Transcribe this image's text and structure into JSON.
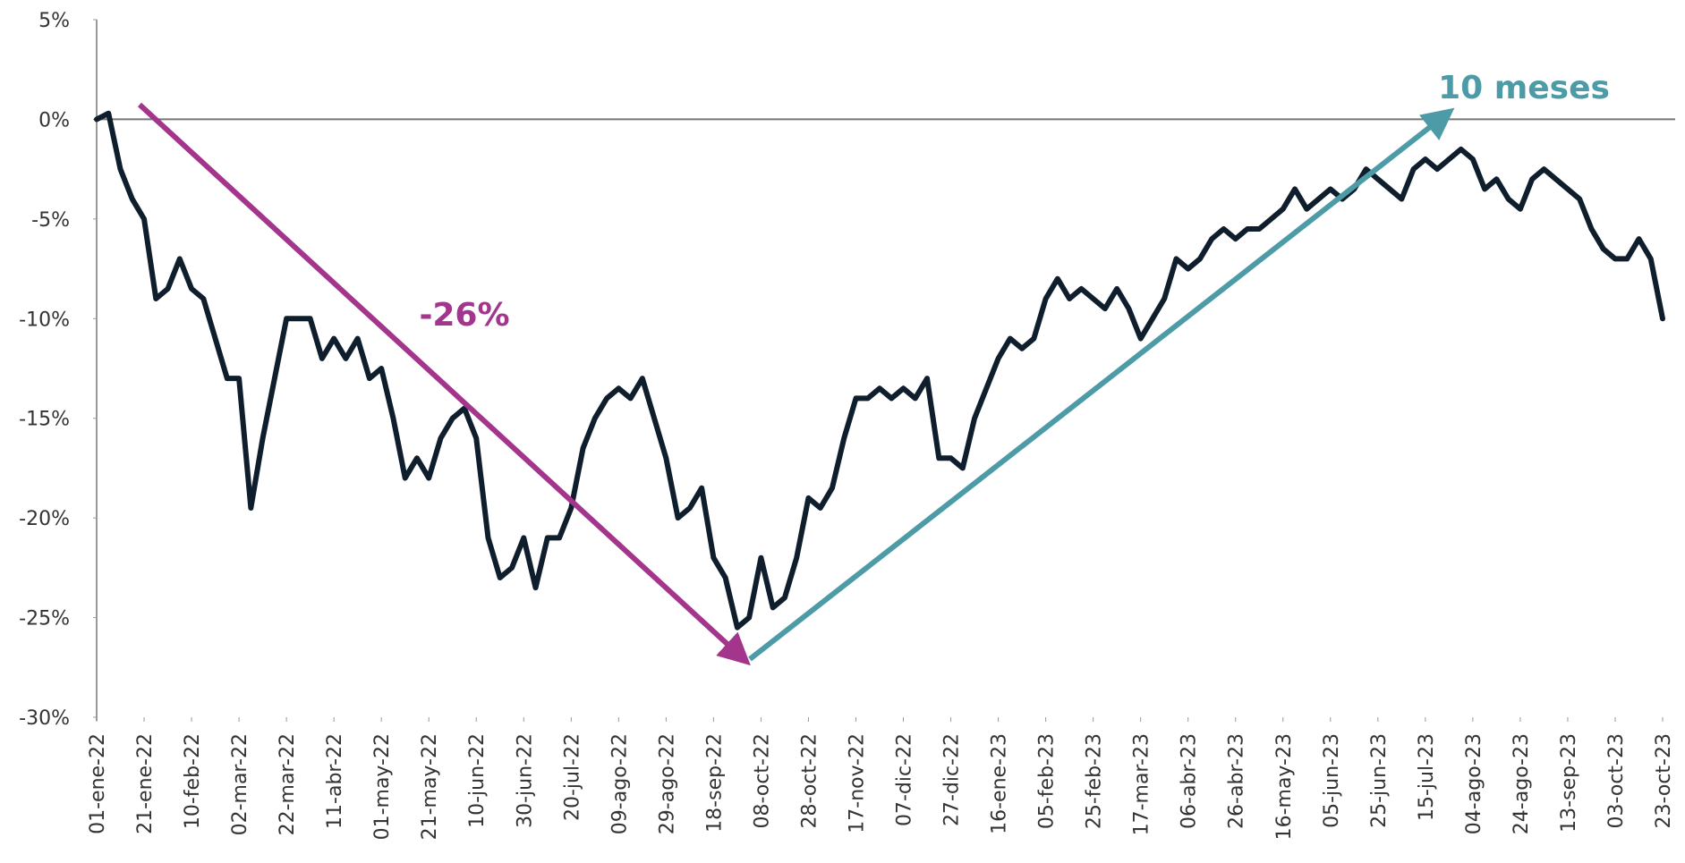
{
  "chart_data": {
    "type": "line",
    "color": "#0f1e2d",
    "xlim": [
      "2022-01-01",
      "2023-10-23"
    ],
    "ylim": [
      -30,
      5
    ],
    "yticks": [
      {
        "value": 5,
        "label": "5%"
      },
      {
        "value": 0,
        "label": "0%"
      },
      {
        "value": -5,
        "label": "-5%"
      },
      {
        "value": -10,
        "label": "-10%"
      },
      {
        "value": -15,
        "label": "-15%"
      },
      {
        "value": -20,
        "label": "-20%"
      },
      {
        "value": -25,
        "label": "-25%"
      },
      {
        "value": -30,
        "label": "-30%"
      }
    ],
    "xticks": [
      {
        "value": "2022-01-01",
        "label": "01-ene-22"
      },
      {
        "value": "2022-01-21",
        "label": "21-ene-22"
      },
      {
        "value": "2022-02-10",
        "label": "10-feb-22"
      },
      {
        "value": "2022-03-02",
        "label": "02-mar-22"
      },
      {
        "value": "2022-03-22",
        "label": "22-mar-22"
      },
      {
        "value": "2022-04-11",
        "label": "11-abr-22"
      },
      {
        "value": "2022-05-01",
        "label": "01-may-22"
      },
      {
        "value": "2022-05-21",
        "label": "21-may-22"
      },
      {
        "value": "2022-06-10",
        "label": "10-jun-22"
      },
      {
        "value": "2022-06-30",
        "label": "30-jun-22"
      },
      {
        "value": "2022-07-20",
        "label": "20-jul-22"
      },
      {
        "value": "2022-08-09",
        "label": "09-ago-22"
      },
      {
        "value": "2022-08-29",
        "label": "29-ago-22"
      },
      {
        "value": "2022-09-18",
        "label": "18-sep-22"
      },
      {
        "value": "2022-10-08",
        "label": "08-oct-22"
      },
      {
        "value": "2022-10-28",
        "label": "28-oct-22"
      },
      {
        "value": "2022-11-17",
        "label": "17-nov-22"
      },
      {
        "value": "2022-12-07",
        "label": "07-dic-22"
      },
      {
        "value": "2022-12-27",
        "label": "27-dic-22"
      },
      {
        "value": "2023-01-16",
        "label": "16-ene-23"
      },
      {
        "value": "2023-02-05",
        "label": "05-feb-23"
      },
      {
        "value": "2023-02-25",
        "label": "25-feb-23"
      },
      {
        "value": "2023-03-17",
        "label": "17-mar-23"
      },
      {
        "value": "2023-04-06",
        "label": "06-abr-23"
      },
      {
        "value": "2023-04-26",
        "label": "26-abr-23"
      },
      {
        "value": "2023-05-16",
        "label": "16-may-23"
      },
      {
        "value": "2023-06-05",
        "label": "05-jun-23"
      },
      {
        "value": "2023-06-25",
        "label": "25-jun-23"
      },
      {
        "value": "2023-07-15",
        "label": "15-jul-23"
      },
      {
        "value": "2023-08-04",
        "label": "04-ago-23"
      },
      {
        "value": "2023-08-24",
        "label": "24-ago-23"
      },
      {
        "value": "2023-09-13",
        "label": "13-sep-23"
      },
      {
        "value": "2023-10-03",
        "label": "03-oct-23"
      },
      {
        "value": "2023-10-23",
        "label": "23-oct-23"
      }
    ],
    "x": [
      "2022-01-01",
      "2022-01-06",
      "2022-01-11",
      "2022-01-16",
      "2022-01-21",
      "2022-01-26",
      "2022-01-31",
      "2022-02-05",
      "2022-02-10",
      "2022-02-15",
      "2022-02-20",
      "2022-02-25",
      "2022-03-02",
      "2022-03-07",
      "2022-03-12",
      "2022-03-17",
      "2022-03-22",
      "2022-03-27",
      "2022-04-01",
      "2022-04-06",
      "2022-04-11",
      "2022-04-16",
      "2022-04-21",
      "2022-04-26",
      "2022-05-01",
      "2022-05-06",
      "2022-05-11",
      "2022-05-16",
      "2022-05-21",
      "2022-05-26",
      "2022-05-31",
      "2022-06-05",
      "2022-06-10",
      "2022-06-15",
      "2022-06-20",
      "2022-06-25",
      "2022-06-30",
      "2022-07-05",
      "2022-07-10",
      "2022-07-15",
      "2022-07-20",
      "2022-07-25",
      "2022-07-30",
      "2022-08-04",
      "2022-08-09",
      "2022-08-14",
      "2022-08-19",
      "2022-08-24",
      "2022-08-29",
      "2022-09-03",
      "2022-09-08",
      "2022-09-13",
      "2022-09-18",
      "2022-09-23",
      "2022-09-28",
      "2022-10-03",
      "2022-10-08",
      "2022-10-13",
      "2022-10-18",
      "2022-10-23",
      "2022-10-28",
      "2022-11-02",
      "2022-11-07",
      "2022-11-12",
      "2022-11-17",
      "2022-11-22",
      "2022-11-27",
      "2022-12-02",
      "2022-12-07",
      "2022-12-12",
      "2022-12-17",
      "2022-12-22",
      "2022-12-27",
      "2023-01-01",
      "2023-01-06",
      "2023-01-11",
      "2023-01-16",
      "2023-01-21",
      "2023-01-26",
      "2023-01-31",
      "2023-02-05",
      "2023-02-10",
      "2023-02-15",
      "2023-02-20",
      "2023-02-25",
      "2023-03-02",
      "2023-03-07",
      "2023-03-12",
      "2023-03-17",
      "2023-03-22",
      "2023-03-27",
      "2023-04-01",
      "2023-04-06",
      "2023-04-11",
      "2023-04-16",
      "2023-04-21",
      "2023-04-26",
      "2023-05-01",
      "2023-05-06",
      "2023-05-11",
      "2023-05-16",
      "2023-05-21",
      "2023-05-26",
      "2023-05-31",
      "2023-06-05",
      "2023-06-10",
      "2023-06-15",
      "2023-06-20",
      "2023-06-25",
      "2023-06-30",
      "2023-07-05",
      "2023-07-10",
      "2023-07-15",
      "2023-07-20",
      "2023-07-25",
      "2023-07-30",
      "2023-08-04",
      "2023-08-09",
      "2023-08-14",
      "2023-08-19",
      "2023-08-24",
      "2023-08-29",
      "2023-09-03",
      "2023-09-08",
      "2023-09-13",
      "2023-09-18",
      "2023-09-23",
      "2023-09-28",
      "2023-10-03",
      "2023-10-08",
      "2023-10-13",
      "2023-10-18",
      "2023-10-23"
    ],
    "values": [
      0,
      0.3,
      -2.5,
      -4,
      -5,
      -9,
      -8.5,
      -7,
      -8.5,
      -9,
      -11,
      -13,
      -13,
      -19.5,
      -16,
      -13,
      -10,
      -10,
      -10,
      -12,
      -11,
      -12,
      -11,
      -13,
      -12.5,
      -15,
      -18,
      -17,
      -18,
      -16,
      -15,
      -14.5,
      -16,
      -21,
      -23,
      -22.5,
      -21,
      -23.5,
      -21,
      -21,
      -19.5,
      -16.5,
      -15,
      -14,
      -13.5,
      -14,
      -13,
      -15,
      -17,
      -20,
      -19.5,
      -18.5,
      -22,
      -23,
      -25.5,
      -25,
      -22,
      -24.5,
      -24,
      -22,
      -19,
      -19.5,
      -18.5,
      -16,
      -14,
      -14,
      -13.5,
      -14,
      -13.5,
      -14,
      -13,
      -17,
      -17,
      -17.5,
      -15,
      -13.5,
      -12,
      -11,
      -11.5,
      -11,
      -9,
      -8,
      -9,
      -8.5,
      -9,
      -9.5,
      -8.5,
      -9.5,
      -11,
      -10,
      -9,
      -7,
      -7.5,
      -7,
      -6,
      -5.5,
      -6,
      -5.5,
      -5.5,
      -5,
      -4.5,
      -3.5,
      -4.5,
      -4,
      -3.5,
      -4,
      -3.5,
      -2.5,
      -3,
      -3.5,
      -4,
      -2.5,
      -2,
      -2.5,
      -2,
      -1.5,
      -2,
      -3.5,
      -3,
      -4,
      -4.5,
      -3,
      -2.5,
      -3,
      -3.5,
      -4,
      -5.5,
      -6.5,
      -7,
      -7,
      -6,
      -7,
      -10
    ],
    "annotations": [
      {
        "text": "-26%",
        "color": "#a3358c"
      },
      {
        "text": "10 meses",
        "color": "#4d9ba7"
      }
    ]
  }
}
